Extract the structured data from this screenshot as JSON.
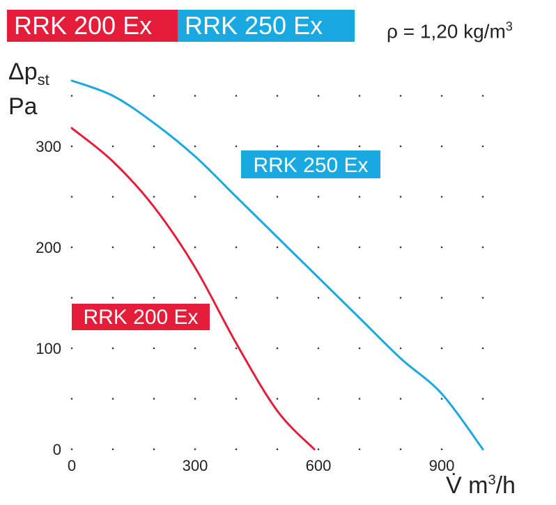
{
  "chart_data": {
    "type": "line",
    "legend": [
      "RRK 200 Ex",
      "RRK 250 Ex"
    ],
    "annotation": "ρ = 1,20 kg/m3",
    "ylabel": "Δpst Pa",
    "xlabel": "V̇ m3/h",
    "xlim": [
      0,
      1050
    ],
    "ylim": [
      0,
      370
    ],
    "xticks": [
      {
        "v": 0,
        "label": "0"
      },
      {
        "v": 300,
        "label": "300"
      },
      {
        "v": 600,
        "label": "600"
      },
      {
        "v": 900,
        "label": "900"
      }
    ],
    "yticks": [
      {
        "v": 0,
        "label": "0"
      },
      {
        "v": 100,
        "label": "100"
      },
      {
        "v": 200,
        "label": "200"
      },
      {
        "v": 300,
        "label": "300"
      }
    ],
    "grid": "dotted",
    "series": [
      {
        "name": "RRK 200 Ex",
        "color": "#e41e3a",
        "points": [
          [
            0,
            318
          ],
          [
            100,
            285
          ],
          [
            200,
            240
          ],
          [
            300,
            180
          ],
          [
            400,
            105
          ],
          [
            500,
            38
          ],
          [
            590,
            0
          ]
        ]
      },
      {
        "name": "RRK 250 Ex",
        "color": "#1aa8e0",
        "points": [
          [
            0,
            365
          ],
          [
            100,
            350
          ],
          [
            200,
            323
          ],
          [
            300,
            290
          ],
          [
            400,
            250
          ],
          [
            500,
            210
          ],
          [
            600,
            170
          ],
          [
            700,
            130
          ],
          [
            800,
            90
          ],
          [
            900,
            55
          ],
          [
            1000,
            0
          ]
        ]
      }
    ]
  },
  "labels": {
    "legend_red": "RRK 200 Ex",
    "legend_blue": "RRK 250 Ex",
    "density_prefix": "ρ = 1,20 kg/m",
    "density_exp": "3",
    "y_main": "Δp",
    "y_sub": "st",
    "y_unit": "Pa",
    "x_prefix": "V̇ m",
    "x_exp": "3",
    "x_suffix": "/h"
  }
}
